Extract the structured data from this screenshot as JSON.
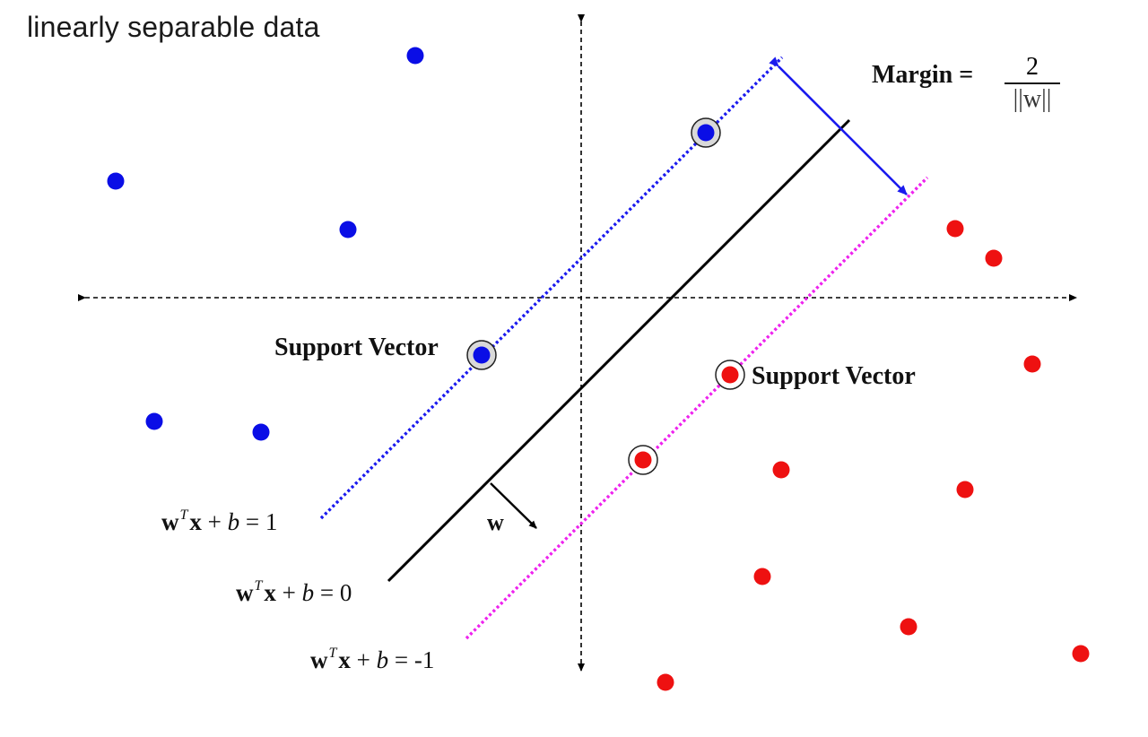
{
  "title": "linearly separable data",
  "margin": {
    "label": "Margin =",
    "numerator": "2",
    "denominator": "||w||"
  },
  "support_vector_label": "Support Vector",
  "equations": {
    "plus": {
      "w": "w",
      "T": "T",
      "x": "x",
      "plus": "+",
      "b": "b",
      "eq": "=",
      "rhs": "1"
    },
    "zero": {
      "w": "w",
      "T": "T",
      "x": "x",
      "plus": "+",
      "b": "b",
      "eq": "=",
      "rhs": "0"
    },
    "minus": {
      "w": "w",
      "T": "T",
      "x": "x",
      "plus": "+",
      "b": "b",
      "eq": "=",
      "rhs": "-1"
    }
  },
  "normal_vector_label": "w",
  "colors": {
    "class_pos": "#0a0ee6",
    "class_neg": "#ee1111",
    "margin_pos_line": "#1a1aee",
    "margin_neg_line": "#ee22ee",
    "decision_line": "#000000",
    "margin_arrow": "#1a1aee"
  }
}
